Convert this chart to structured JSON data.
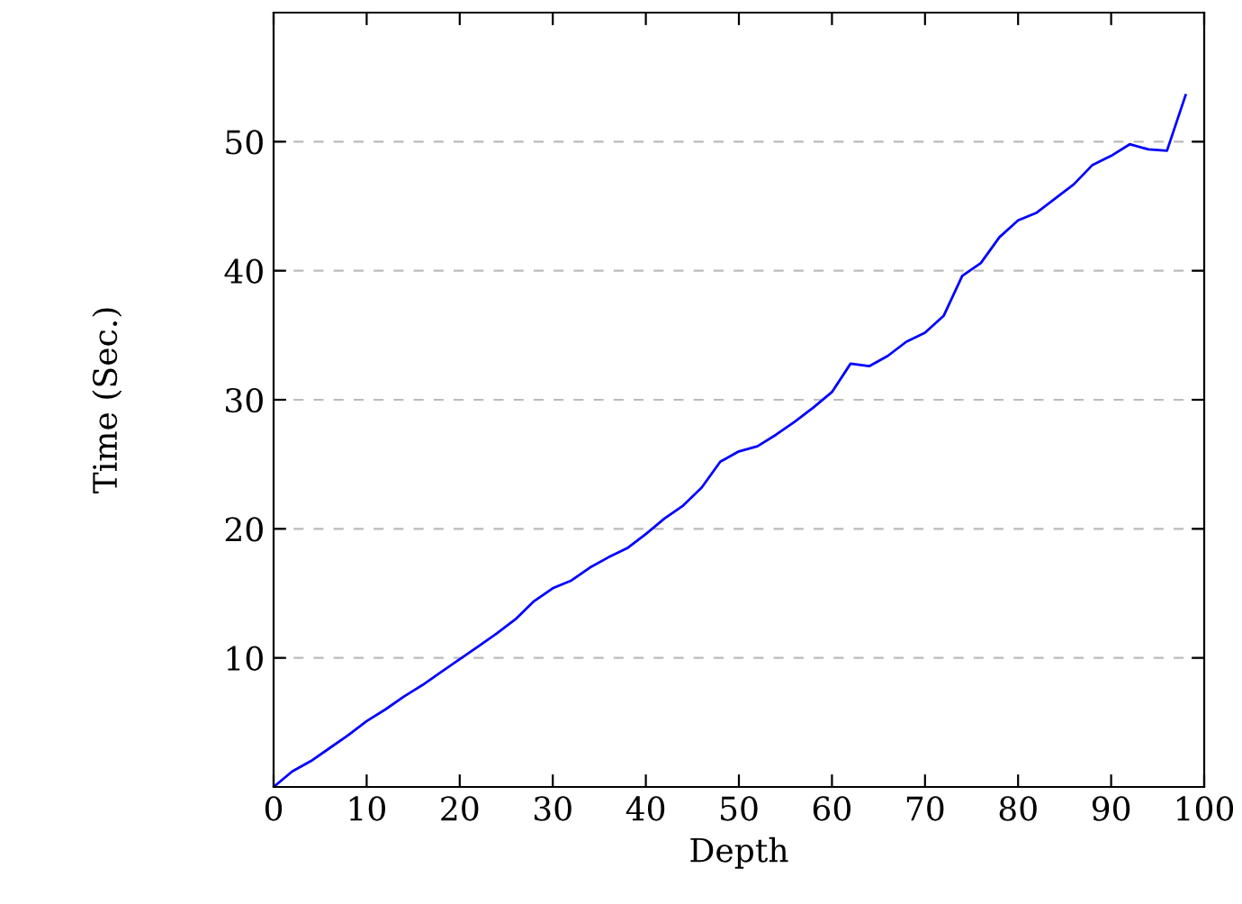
{
  "chart_data": {
    "type": "line",
    "xlabel": "Depth",
    "ylabel": "Time (Sec.)",
    "x": [
      0,
      2,
      4,
      6,
      8,
      10,
      12,
      14,
      16,
      18,
      20,
      22,
      24,
      26,
      28,
      30,
      32,
      34,
      36,
      38,
      40,
      42,
      44,
      46,
      48,
      50,
      52,
      54,
      56,
      58,
      60,
      62,
      64,
      66,
      68,
      70,
      72,
      74,
      76,
      78,
      80,
      82,
      84,
      86,
      88,
      90,
      92,
      94,
      96,
      98
    ],
    "series": [
      {
        "color": "#0000ff",
        "values": [
          0,
          1.2,
          2.0,
          3.0,
          4.0,
          5.1,
          6.0,
          7.0,
          7.9,
          8.9,
          9.9,
          10.9,
          11.9,
          13.0,
          14.4,
          15.4,
          16.0,
          17.0,
          17.8,
          18.5,
          19.6,
          20.8,
          21.8,
          23.2,
          25.2,
          26.0,
          26.4,
          27.3,
          28.3,
          29.4,
          30.6,
          32.8,
          32.6,
          33.4,
          34.5,
          35.2,
          36.5,
          39.6,
          40.6,
          42.6,
          43.9,
          44.5,
          45.6,
          46.7,
          48.2,
          48.9,
          49.8,
          49.4,
          49.3,
          53.6
        ]
      }
    ],
    "xlim": [
      0,
      100
    ],
    "ylim": [
      0,
      60
    ],
    "xticks": [
      0,
      10,
      20,
      30,
      40,
      50,
      60,
      70,
      80,
      90,
      100
    ],
    "yticks": [
      10,
      20,
      30,
      40,
      50
    ],
    "grid": "y",
    "marker": "none",
    "line_style": "solid",
    "legend": false
  }
}
